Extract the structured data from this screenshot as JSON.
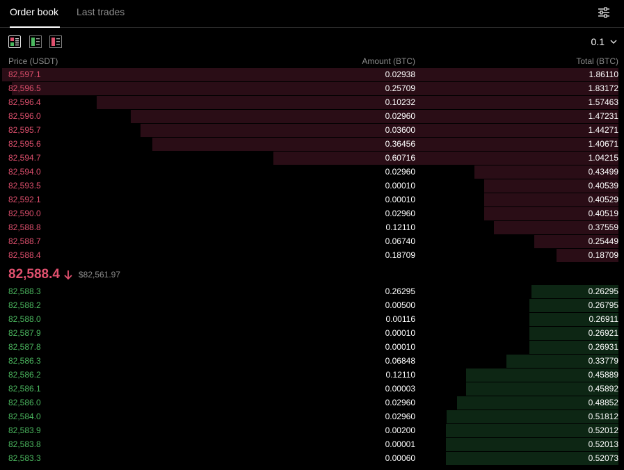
{
  "tabs": [
    {
      "label": "Order book",
      "active": true
    },
    {
      "label": "Last trades",
      "active": false
    }
  ],
  "toolbar": {
    "settings_icon": "sliders-icon",
    "view_modes": [
      "both-sides-icon",
      "bids-only-icon",
      "asks-only-icon"
    ],
    "precision": "0.1"
  },
  "columns": {
    "price": "Price (USDT)",
    "amount": "Amount (BTC)",
    "total": "Total (BTC)"
  },
  "colors": {
    "ask": "#e0506e",
    "bid": "#4bb85f",
    "ask_depth": "#2a0d16",
    "bid_depth": "#0d2614"
  },
  "asks": [
    {
      "price": "82,597.1",
      "amount": "0.02938",
      "total": "1.86110",
      "depth_fraction": 1.0
    },
    {
      "price": "82,596.5",
      "amount": "0.25709",
      "total": "1.83172",
      "depth_fraction": 0.984
    },
    {
      "price": "82,596.4",
      "amount": "0.10232",
      "total": "1.57463",
      "depth_fraction": 0.846
    },
    {
      "price": "82,596.0",
      "amount": "0.02960",
      "total": "1.47231",
      "depth_fraction": 0.791
    },
    {
      "price": "82,595.7",
      "amount": "0.03600",
      "total": "1.44271",
      "depth_fraction": 0.775
    },
    {
      "price": "82,595.6",
      "amount": "0.36456",
      "total": "1.40671",
      "depth_fraction": 0.756
    },
    {
      "price": "82,594.7",
      "amount": "0.60716",
      "total": "1.04215",
      "depth_fraction": 0.56
    },
    {
      "price": "82,594.0",
      "amount": "0.02960",
      "total": "0.43499",
      "depth_fraction": 0.234
    },
    {
      "price": "82,593.5",
      "amount": "0.00010",
      "total": "0.40539",
      "depth_fraction": 0.218
    },
    {
      "price": "82,592.1",
      "amount": "0.00010",
      "total": "0.40529",
      "depth_fraction": 0.218
    },
    {
      "price": "82,590.0",
      "amount": "0.02960",
      "total": "0.40519",
      "depth_fraction": 0.218
    },
    {
      "price": "82,588.8",
      "amount": "0.12110",
      "total": "0.37559",
      "depth_fraction": 0.202
    },
    {
      "price": "82,588.7",
      "amount": "0.06740",
      "total": "0.25449",
      "depth_fraction": 0.137
    },
    {
      "price": "82,588.4",
      "amount": "0.18709",
      "total": "0.18709",
      "depth_fraction": 0.101
    }
  ],
  "last_price": {
    "price": "82,588.4",
    "direction": "down",
    "arrow_icon": "arrow-down-icon",
    "index_price": "$82,561.97"
  },
  "bids": [
    {
      "price": "82,588.3",
      "amount": "0.26295",
      "total": "0.26295",
      "depth_fraction": 0.141
    },
    {
      "price": "82,588.2",
      "amount": "0.00500",
      "total": "0.26795",
      "depth_fraction": 0.144
    },
    {
      "price": "82,588.0",
      "amount": "0.00116",
      "total": "0.26911",
      "depth_fraction": 0.145
    },
    {
      "price": "82,587.9",
      "amount": "0.00010",
      "total": "0.26921",
      "depth_fraction": 0.145
    },
    {
      "price": "82,587.8",
      "amount": "0.00010",
      "total": "0.26931",
      "depth_fraction": 0.145
    },
    {
      "price": "82,586.3",
      "amount": "0.06848",
      "total": "0.33779",
      "depth_fraction": 0.182
    },
    {
      "price": "82,586.2",
      "amount": "0.12110",
      "total": "0.45889",
      "depth_fraction": 0.247
    },
    {
      "price": "82,586.1",
      "amount": "0.00003",
      "total": "0.45892",
      "depth_fraction": 0.247
    },
    {
      "price": "82,586.0",
      "amount": "0.02960",
      "total": "0.48852",
      "depth_fraction": 0.262
    },
    {
      "price": "82,584.0",
      "amount": "0.02960",
      "total": "0.51812",
      "depth_fraction": 0.279
    },
    {
      "price": "82,583.9",
      "amount": "0.00200",
      "total": "0.52012",
      "depth_fraction": 0.28
    },
    {
      "price": "82,583.8",
      "amount": "0.00001",
      "total": "0.52013",
      "depth_fraction": 0.28
    },
    {
      "price": "82,583.3",
      "amount": "0.00060",
      "total": "0.52073",
      "depth_fraction": 0.28
    }
  ]
}
